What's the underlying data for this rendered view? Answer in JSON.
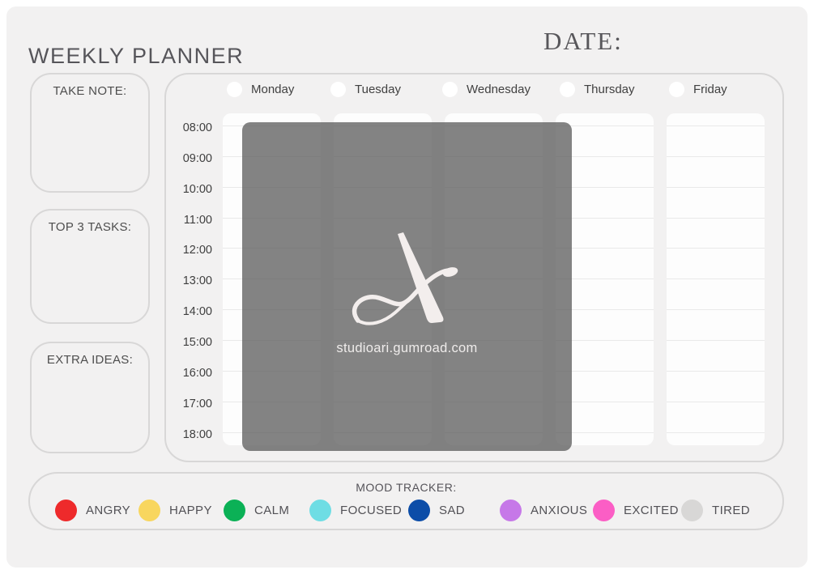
{
  "header": {
    "title": "WEEKLY PLANNER",
    "date_label": "DATE:"
  },
  "sidebar": {
    "boxes": [
      {
        "label": "TAKE NOTE:"
      },
      {
        "label": "TOP 3 TASKS:"
      },
      {
        "label": "EXTRA IDEAS:"
      }
    ]
  },
  "schedule": {
    "days": [
      {
        "label": "Monday"
      },
      {
        "label": "Tuesday"
      },
      {
        "label": "Wednesday"
      },
      {
        "label": "Thursday"
      },
      {
        "label": "Friday"
      }
    ],
    "times": [
      "08:00",
      "09:00",
      "10:00",
      "11:00",
      "12:00",
      "13:00",
      "14:00",
      "15:00",
      "16:00",
      "17:00",
      "18:00"
    ]
  },
  "watermark": {
    "logo_icon": "studio-ari-monogram",
    "url": "studioari.gumroad.com",
    "overlay_color": "rgba(92,92,92,0.76)",
    "logo_color": "#f3eeed"
  },
  "mood_tracker": {
    "label": "MOOD TRACKER:",
    "moods": [
      {
        "label": "ANGRY",
        "color": "#ee2a2b"
      },
      {
        "label": "HAPPY",
        "color": "#f8d65e"
      },
      {
        "label": "CALM",
        "color": "#0bb156"
      },
      {
        "label": "FOCUSED",
        "color": "#6edde4"
      },
      {
        "label": "SAD",
        "color": "#0c4da8"
      },
      {
        "label": "ANXIOUS",
        "color": "#c678e8"
      },
      {
        "label": "EXCITED",
        "color": "#fb5ec5"
      },
      {
        "label": "TIRED",
        "color": "#d8d7d6"
      }
    ]
  },
  "colors": {
    "page_background": "#f2f1f1",
    "box_border": "#d8d7d7",
    "column_background": "#fdfdfd",
    "row_line": "#e9e9e9",
    "text_primary": "#414141"
  }
}
